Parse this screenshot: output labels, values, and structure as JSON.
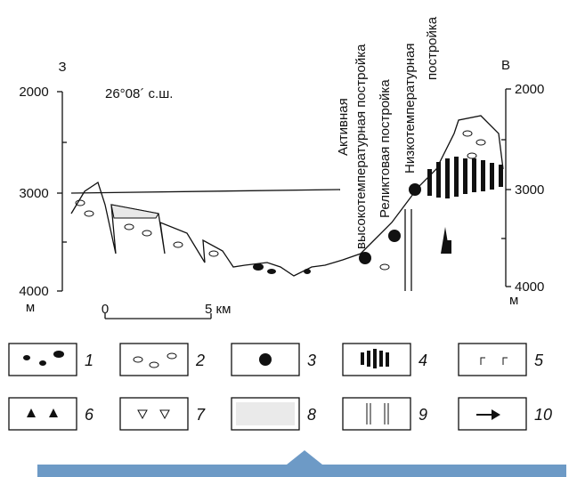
{
  "header": {
    "west": "З",
    "east": "В",
    "latitude": "26°08´ с.ш."
  },
  "axes": {
    "left": {
      "ticks": [
        "2000",
        "3000",
        "4000"
      ],
      "unit": "м"
    },
    "right": {
      "ticks": [
        "2000",
        "3000",
        "4000"
      ],
      "unit": "м"
    }
  },
  "scale": {
    "start": "0",
    "end": "5 км"
  },
  "labels": [
    {
      "lines": [
        "Активная",
        "высокотемпературная постройка"
      ]
    },
    {
      "lines": [
        "Реликтовая постройка"
      ]
    },
    {
      "lines": [
        "Низкотемпературная",
        "постройка"
      ]
    }
  ],
  "legend": [
    {
      "number": "1"
    },
    {
      "number": "2"
    },
    {
      "number": "3"
    },
    {
      "number": "4"
    },
    {
      "number": "5"
    },
    {
      "number": "6"
    },
    {
      "number": "7"
    },
    {
      "number": "8"
    },
    {
      "number": "9"
    },
    {
      "number": "10"
    }
  ]
}
